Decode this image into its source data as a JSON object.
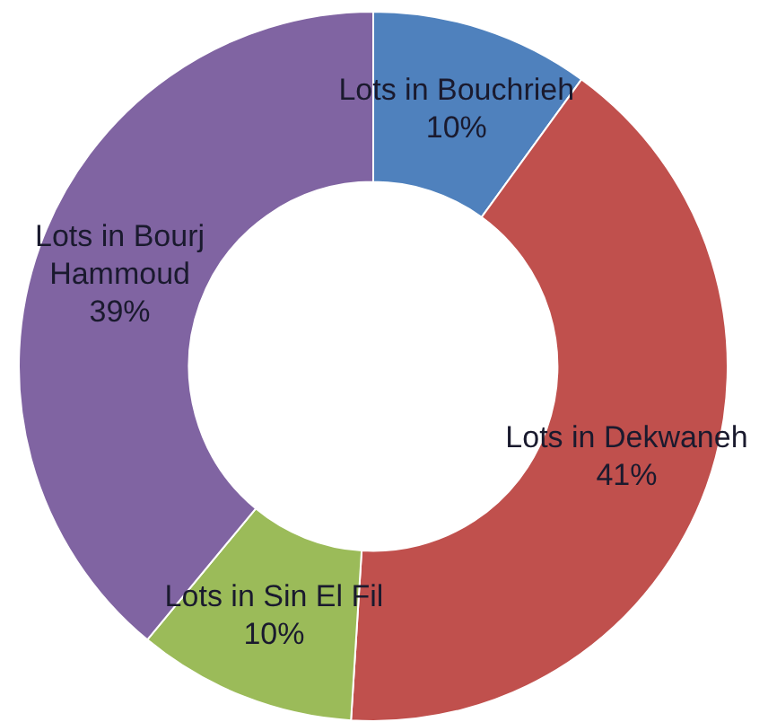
{
  "chart_data": {
    "type": "donut",
    "categories": [
      "Lots in Bouchrieh",
      "Lots in Dekwaneh",
      "Lots in Sin El Fil",
      "Lots in Bourj Hammoud"
    ],
    "values": [
      10,
      41,
      10,
      39
    ],
    "colors": [
      "#4f81bd",
      "#c0504d",
      "#9bbb59",
      "#8064a2"
    ],
    "value_labels": [
      "10%",
      "41%",
      "10%",
      "39%"
    ],
    "legend": false
  }
}
